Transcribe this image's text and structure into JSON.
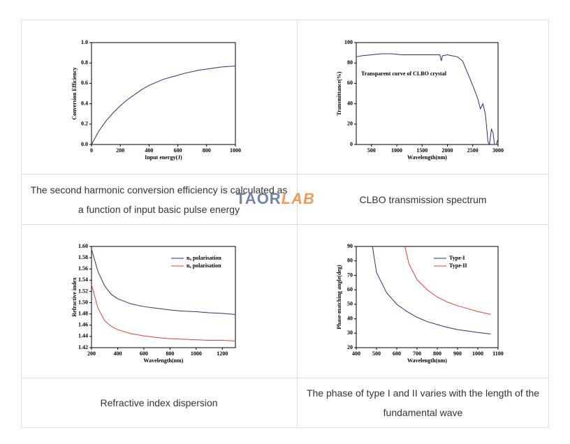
{
  "chart_data": [
    {
      "type": "line",
      "xlabel": "Input energy(J)",
      "ylabel": "Conversion Efficiency",
      "color": "#2b2f7a",
      "x": [
        0,
        50,
        100,
        150,
        200,
        250,
        300,
        350,
        400,
        450,
        500,
        550,
        600,
        650,
        700,
        750,
        800,
        850,
        900,
        950,
        1000
      ],
      "values": [
        0,
        0.13,
        0.23,
        0.31,
        0.38,
        0.44,
        0.49,
        0.54,
        0.58,
        0.61,
        0.64,
        0.66,
        0.68,
        0.7,
        0.715,
        0.73,
        0.74,
        0.75,
        0.76,
        0.765,
        0.77
      ],
      "xlim": [
        0,
        1000
      ],
      "xticks": [
        0,
        200,
        400,
        600,
        800,
        1000
      ],
      "ylim": [
        0,
        1
      ],
      "yticks": [
        {
          "value": 0,
          "label": "0.0"
        },
        0.2,
        0.4,
        0.6,
        0.8,
        {
          "value": 1,
          "label": "1.0"
        }
      ]
    },
    {
      "type": "line",
      "xlabel": "Wavelength(nm)",
      "ylabel": "Transmittance(%)",
      "annotation": "Transparent curve of CLBO crystal",
      "color": "#2b2f7a",
      "x": [
        200,
        300,
        500,
        700,
        900,
        1100,
        1300,
        1500,
        1700,
        1850,
        1880,
        1900,
        2000,
        2100,
        2200,
        2300,
        2400,
        2500,
        2600,
        2650,
        2700,
        2750,
        2800,
        2830,
        2870,
        2900,
        2930,
        2960,
        3000
      ],
      "values": [
        86,
        87,
        88,
        89,
        89,
        88,
        88,
        88,
        88,
        88,
        82,
        87,
        88,
        87,
        86,
        82,
        70,
        58,
        45,
        35,
        40,
        30,
        3,
        0,
        15,
        12,
        0,
        0,
        5
      ],
      "xlim": [
        200,
        3000
      ],
      "xticks": [
        500,
        1000,
        1500,
        2000,
        2500,
        3000
      ],
      "ylim": [
        0,
        100
      ],
      "yticks": [
        0,
        20,
        40,
        60,
        80,
        100
      ]
    },
    {
      "type": "line",
      "xlabel": "Wavelength(nm)",
      "ylabel": "Refractive index",
      "series": [
        {
          "name": "no polarisation",
          "color": "#2b2f7a",
          "x": [
            200,
            250,
            300,
            350,
            400,
            500,
            600,
            700,
            800,
            900,
            1000,
            1100,
            1200,
            1300
          ],
          "values": [
            1.595,
            1.555,
            1.53,
            1.515,
            1.507,
            1.498,
            1.493,
            1.49,
            1.487,
            1.485,
            1.484,
            1.482,
            1.481,
            1.479
          ]
        },
        {
          "name": "ne polarisation",
          "color": "#e03c3c",
          "x": [
            200,
            250,
            300,
            350,
            400,
            500,
            600,
            700,
            800,
            900,
            1000,
            1100,
            1200,
            1300
          ],
          "values": [
            1.532,
            1.49,
            1.468,
            1.458,
            1.452,
            1.445,
            1.441,
            1.438,
            1.436,
            1.435,
            1.434,
            1.433,
            1.433,
            1.432
          ]
        }
      ],
      "xlim": [
        200,
        1300
      ],
      "xticks": [
        200,
        400,
        600,
        800,
        1000,
        1200
      ],
      "ylim": [
        1.42,
        1.6
      ],
      "yticks": [
        1.42,
        1.44,
        1.46,
        1.48,
        {
          "value": 1.5,
          "label": "1.50"
        },
        1.52,
        1.54,
        1.56,
        1.58,
        {
          "value": 1.6,
          "label": "1.60"
        }
      ]
    },
    {
      "type": "line",
      "xlabel": "Wavelength(nm)",
      "ylabel": "Phase-matching angle(deg)",
      "series": [
        {
          "name": "Type-I",
          "color": "#2b2f7a",
          "x": [
            480,
            500,
            550,
            600,
            650,
            700,
            750,
            800,
            850,
            900,
            950,
            1000,
            1064
          ],
          "values": [
            90,
            72,
            58,
            50,
            45,
            41,
            38,
            36,
            34,
            32.5,
            31.5,
            30.5,
            29.5
          ]
        },
        {
          "name": "Type-II",
          "color": "#e03c3c",
          "x": [
            640,
            660,
            700,
            750,
            800,
            850,
            900,
            950,
            1000,
            1064
          ],
          "values": [
            90,
            78,
            67,
            60,
            55,
            51.5,
            49,
            47,
            45,
            43
          ]
        }
      ],
      "xlim": [
        400,
        1100
      ],
      "xticks": [
        400,
        500,
        600,
        700,
        800,
        900,
        1000,
        1100
      ],
      "ylim": [
        20,
        90
      ],
      "yticks": [
        20,
        30,
        40,
        50,
        60,
        70,
        80,
        90
      ]
    }
  ],
  "table": {
    "captions": [
      "The second harmonic conversion efficiency is calculated as a function of input basic pulse energy",
      "CLBO transmission spectrum",
      "Refractive index dispersion",
      "The phase of type I and II varies with the length of the fundamental wave"
    ]
  },
  "watermark": {
    "parts": [
      "TAOR",
      "LAB"
    ]
  }
}
